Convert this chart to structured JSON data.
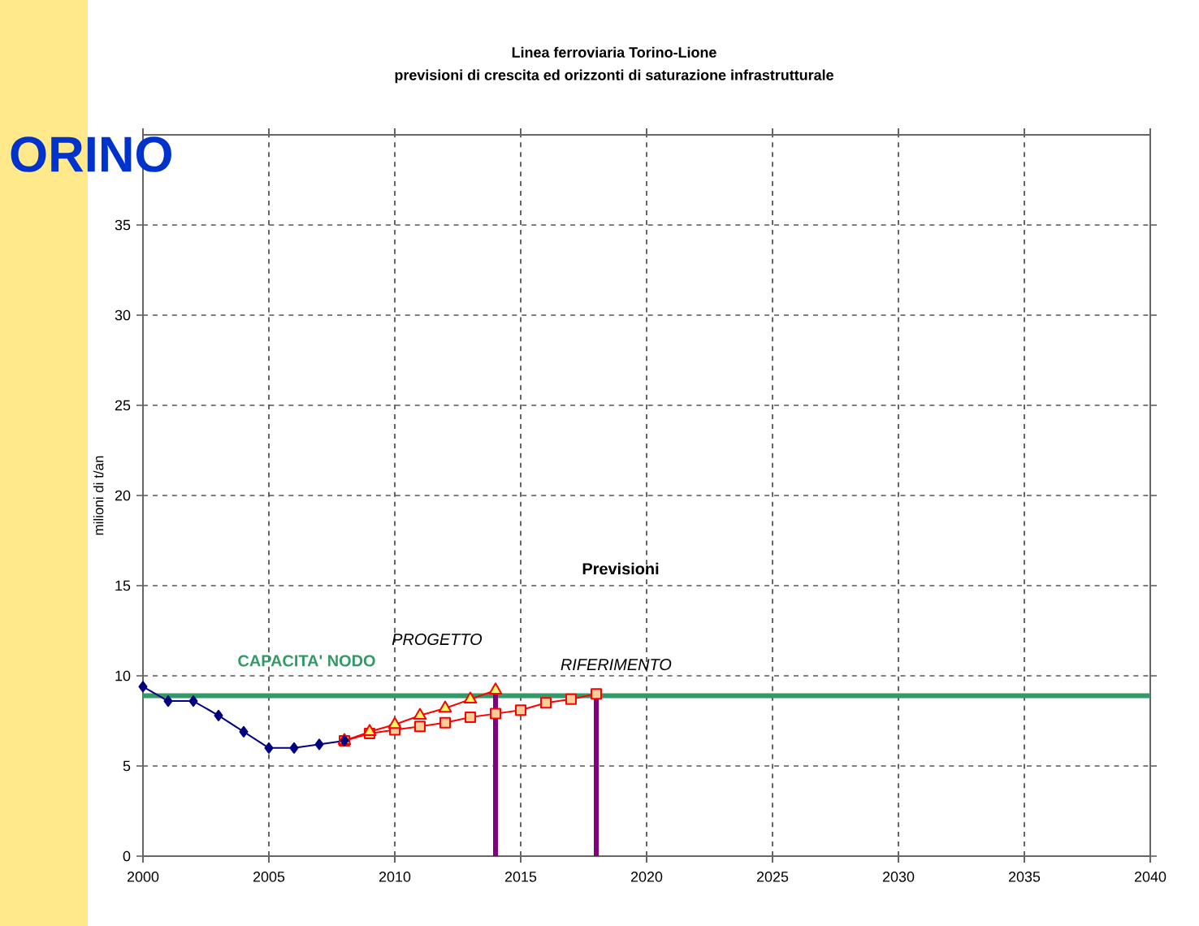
{
  "chart_data": {
    "type": "line",
    "title": "Linea ferroviaria Torino-Lione\nprevisioni di crescita ed orizzonti di saturazione infrastrutturale",
    "ylabel": "milioni di t/an",
    "xlim": [
      2000,
      2040
    ],
    "xticks": [
      2000,
      2005,
      2010,
      2015,
      2020,
      2025,
      2030,
      2035,
      2040
    ],
    "ylim": [
      0,
      40
    ],
    "yticks": [
      0,
      5,
      10,
      15,
      20,
      25,
      30,
      35
    ],
    "grid": true,
    "series": [
      {
        "color": "#000080",
        "marker": "diamond",
        "x": [
          2000,
          2001,
          2002,
          2003,
          2004,
          2005,
          2006,
          2007,
          2008
        ],
        "values": [
          9.4,
          8.6,
          8.6,
          7.8,
          6.9,
          6.0,
          6.0,
          6.2,
          6.4
        ]
      },
      {
        "color": "#ff0000",
        "marker": "triangle",
        "x": [
          2008,
          2009,
          2010,
          2011,
          2012,
          2013,
          2014
        ],
        "values": [
          6.4,
          6.9,
          7.3,
          7.8,
          8.2,
          8.7,
          9.2
        ]
      },
      {
        "color": "#ff0000",
        "marker": "square",
        "x": [
          2008,
          2009,
          2010,
          2011,
          2012,
          2013,
          2014,
          2015,
          2016,
          2017,
          2018
        ],
        "values": [
          6.4,
          6.8,
          7.0,
          7.2,
          7.4,
          7.7,
          7.9,
          8.1,
          8.5,
          8.7,
          9.0
        ]
      }
    ],
    "ref_lines": [
      {
        "axis": "y",
        "value": 8.9,
        "label": "CAPACITA' NODO",
        "color": "#339966"
      },
      {
        "axis": "x",
        "value": 2014,
        "label": "PROGETTO",
        "color": "#800080"
      },
      {
        "axis": "x",
        "value": 2018,
        "label": "RIFERIMENTO",
        "color": "#800080"
      }
    ],
    "annotations": [
      "Previsioni",
      "ORINO"
    ]
  }
}
